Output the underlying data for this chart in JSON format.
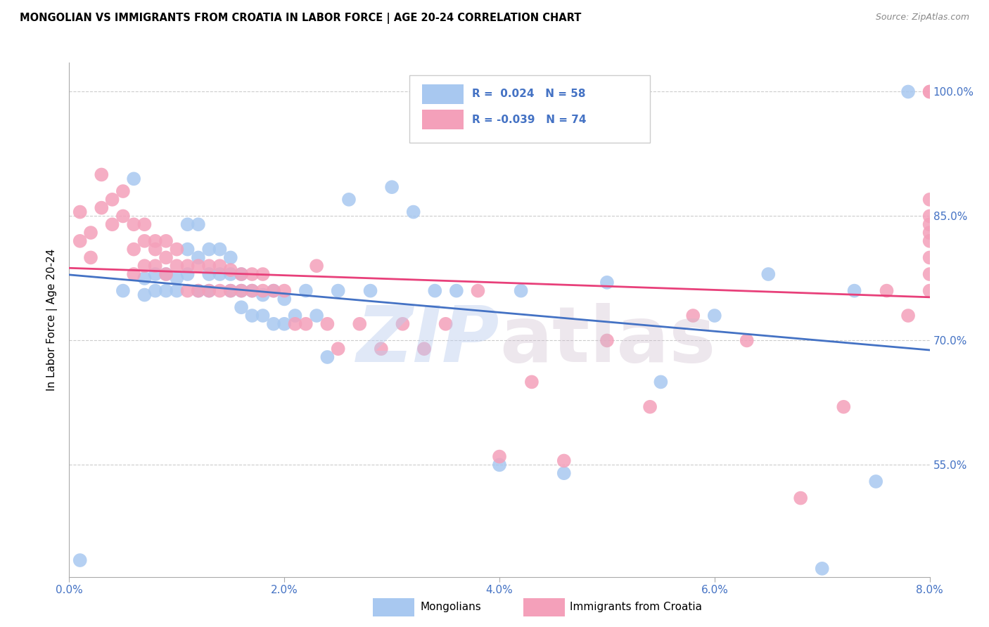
{
  "title": "MONGOLIAN VS IMMIGRANTS FROM CROATIA IN LABOR FORCE | AGE 20-24 CORRELATION CHART",
  "source": "Source: ZipAtlas.com",
  "ylabel": "In Labor Force | Age 20-24",
  "color_blue": "#A8C8F0",
  "color_pink": "#F4A0BA",
  "line_color_blue": "#4472C4",
  "line_color_pink": "#E8407A",
  "xmin": 0.0,
  "xmax": 0.08,
  "ymin": 0.415,
  "ymax": 1.035,
  "mongolians_x": [
    0.001,
    0.005,
    0.006,
    0.007,
    0.007,
    0.008,
    0.008,
    0.009,
    0.009,
    0.01,
    0.01,
    0.011,
    0.011,
    0.011,
    0.012,
    0.012,
    0.012,
    0.013,
    0.013,
    0.013,
    0.014,
    0.014,
    0.015,
    0.015,
    0.015,
    0.016,
    0.016,
    0.016,
    0.017,
    0.017,
    0.018,
    0.018,
    0.019,
    0.019,
    0.02,
    0.02,
    0.021,
    0.022,
    0.023,
    0.024,
    0.025,
    0.026,
    0.028,
    0.03,
    0.032,
    0.034,
    0.036,
    0.04,
    0.042,
    0.046,
    0.05,
    0.055,
    0.06,
    0.065,
    0.07,
    0.073,
    0.075,
    0.078
  ],
  "mongolians_y": [
    0.435,
    0.76,
    0.895,
    0.775,
    0.755,
    0.78,
    0.76,
    0.78,
    0.76,
    0.775,
    0.76,
    0.84,
    0.81,
    0.78,
    0.84,
    0.8,
    0.76,
    0.81,
    0.78,
    0.76,
    0.81,
    0.78,
    0.8,
    0.78,
    0.76,
    0.78,
    0.76,
    0.74,
    0.76,
    0.73,
    0.755,
    0.73,
    0.76,
    0.72,
    0.75,
    0.72,
    0.73,
    0.76,
    0.73,
    0.68,
    0.76,
    0.87,
    0.76,
    0.885,
    0.855,
    0.76,
    0.76,
    0.55,
    0.76,
    0.54,
    0.77,
    0.65,
    0.73,
    0.78,
    0.425,
    0.76,
    0.53,
    1.0
  ],
  "croatia_x": [
    0.001,
    0.001,
    0.002,
    0.002,
    0.003,
    0.003,
    0.004,
    0.004,
    0.005,
    0.005,
    0.006,
    0.006,
    0.006,
    0.007,
    0.007,
    0.007,
    0.008,
    0.008,
    0.008,
    0.009,
    0.009,
    0.009,
    0.01,
    0.01,
    0.011,
    0.011,
    0.012,
    0.012,
    0.013,
    0.013,
    0.014,
    0.014,
    0.015,
    0.015,
    0.016,
    0.016,
    0.017,
    0.017,
    0.018,
    0.018,
    0.019,
    0.02,
    0.021,
    0.022,
    0.023,
    0.024,
    0.025,
    0.027,
    0.029,
    0.031,
    0.033,
    0.035,
    0.038,
    0.04,
    0.043,
    0.046,
    0.05,
    0.054,
    0.058,
    0.063,
    0.068,
    0.072,
    0.076,
    0.078,
    0.08,
    0.08,
    0.08,
    0.08,
    0.08,
    0.08,
    0.08,
    0.08,
    0.08,
    0.08
  ],
  "croatia_y": [
    0.82,
    0.855,
    0.8,
    0.83,
    0.86,
    0.9,
    0.87,
    0.84,
    0.88,
    0.85,
    0.84,
    0.81,
    0.78,
    0.84,
    0.82,
    0.79,
    0.82,
    0.81,
    0.79,
    0.82,
    0.8,
    0.78,
    0.81,
    0.79,
    0.79,
    0.76,
    0.79,
    0.76,
    0.79,
    0.76,
    0.79,
    0.76,
    0.785,
    0.76,
    0.78,
    0.76,
    0.78,
    0.76,
    0.78,
    0.76,
    0.76,
    0.76,
    0.72,
    0.72,
    0.79,
    0.72,
    0.69,
    0.72,
    0.69,
    0.72,
    0.69,
    0.72,
    0.76,
    0.56,
    0.65,
    0.555,
    0.7,
    0.62,
    0.73,
    0.7,
    0.51,
    0.62,
    0.76,
    0.73,
    1.0,
    1.0,
    0.8,
    0.76,
    0.82,
    0.78,
    0.85,
    0.83,
    0.87,
    0.84
  ]
}
